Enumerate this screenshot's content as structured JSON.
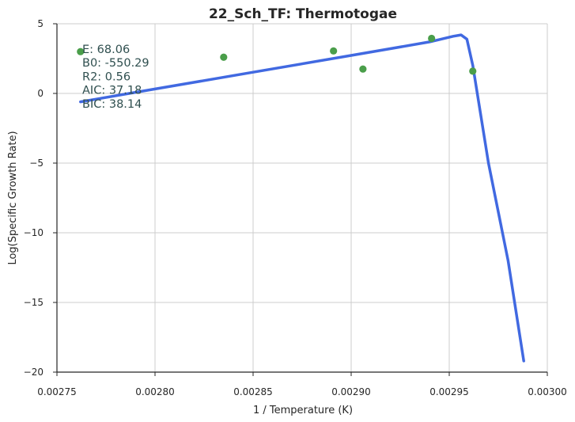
{
  "chart_data": {
    "type": "scatter",
    "title": "22_Sch_TF: Thermotogae",
    "xlabel": "1 / Temperature (K)",
    "ylabel": "Log(Specific Growth Rate)",
    "xlim": [
      0.00275,
      0.003
    ],
    "ylim": [
      -20,
      5
    ],
    "x_ticks": [
      0.00275,
      0.0028,
      0.00285,
      0.0029,
      0.00295,
      0.003
    ],
    "x_tick_labels": [
      "0.00275",
      "0.00280",
      "0.00285",
      "0.00290",
      "0.00295",
      "0.00300"
    ],
    "y_ticks": [
      -20,
      -15,
      -10,
      -5,
      0,
      5
    ],
    "y_tick_labels": [
      "−20",
      "−15",
      "−10",
      "−5",
      "0",
      "5"
    ],
    "grid": true,
    "series": [
      {
        "kind": "points",
        "color": "#4a9e4a",
        "points": [
          {
            "x": 0.002762,
            "y": 3.0
          },
          {
            "x": 0.002835,
            "y": 2.6
          },
          {
            "x": 0.002891,
            "y": 3.05
          },
          {
            "x": 0.002906,
            "y": 1.75
          },
          {
            "x": 0.002941,
            "y": 3.95
          },
          {
            "x": 0.002962,
            "y": 1.6
          }
        ]
      },
      {
        "kind": "line",
        "color": "#4169e1",
        "points": [
          {
            "x": 0.002762,
            "y": -0.6
          },
          {
            "x": 0.0028,
            "y": 0.32
          },
          {
            "x": 0.00285,
            "y": 1.52
          },
          {
            "x": 0.0029,
            "y": 2.73
          },
          {
            "x": 0.00294,
            "y": 3.7
          },
          {
            "x": 0.002952,
            "y": 4.1
          },
          {
            "x": 0.002956,
            "y": 4.2
          },
          {
            "x": 0.002959,
            "y": 3.9
          },
          {
            "x": 0.002962,
            "y": 2.0
          },
          {
            "x": 0.002966,
            "y": -1.5
          },
          {
            "x": 0.00297,
            "y": -5.0
          },
          {
            "x": 0.00298,
            "y": -12.0
          },
          {
            "x": 0.002988,
            "y": -19.2
          }
        ]
      }
    ],
    "annotations": [
      "E:  68.06",
      "B0:  -550.29",
      "R2:  0.56",
      "AIC: 37.18",
      "BIC: 38.14"
    ]
  }
}
